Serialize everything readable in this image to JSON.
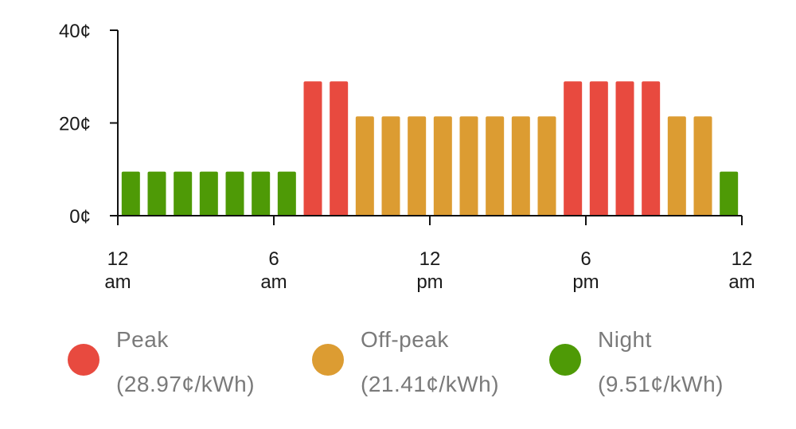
{
  "chart_data": {
    "type": "bar",
    "y_unit_suffix": "¢",
    "ylim": [
      0,
      40
    ],
    "y_ticks": [
      {
        "value": 0,
        "label": "0¢"
      },
      {
        "value": 20,
        "label": "20¢"
      },
      {
        "value": 40,
        "label": "40¢"
      }
    ],
    "x_ticks": [
      {
        "hour": 0,
        "line1": "12",
        "line2": "am"
      },
      {
        "hour": 6,
        "line1": "6",
        "line2": "am"
      },
      {
        "hour": 12,
        "line1": "12",
        "line2": "pm"
      },
      {
        "hour": 18,
        "line1": "6",
        "line2": "pm"
      },
      {
        "hour": 24,
        "line1": "12",
        "line2": "am"
      }
    ],
    "tiers": {
      "night": {
        "label": "Night",
        "rate_text": "(9.51¢/kWh)",
        "value": 9.51,
        "color": "#4e9a06"
      },
      "peak": {
        "label": "Peak",
        "rate_text": "(28.97¢/kWh)",
        "value": 28.97,
        "color": "#e84a3f"
      },
      "offpeak": {
        "label": "Off-peak",
        "rate_text": "(21.41¢/kWh)",
        "value": 21.41,
        "color": "#dc9c32"
      }
    },
    "legend_order": [
      "peak",
      "offpeak",
      "night"
    ],
    "hours": [
      0,
      1,
      2,
      3,
      4,
      5,
      6,
      7,
      8,
      9,
      10,
      11,
      12,
      13,
      14,
      15,
      16,
      17,
      18,
      19,
      20,
      21,
      22,
      23
    ],
    "hour_tiers": [
      "night",
      "night",
      "night",
      "night",
      "night",
      "night",
      "night",
      "peak",
      "peak",
      "offpeak",
      "offpeak",
      "offpeak",
      "offpeak",
      "offpeak",
      "offpeak",
      "offpeak",
      "offpeak",
      "peak",
      "peak",
      "peak",
      "peak",
      "offpeak",
      "offpeak",
      "night"
    ],
    "grid": false
  }
}
